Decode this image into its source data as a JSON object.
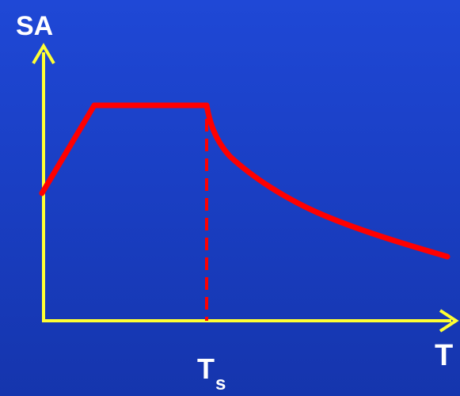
{
  "axes": {
    "y_label": "SA",
    "x_label": "T",
    "axis_color": "#ffff33"
  },
  "spectrum": {
    "curve_color": "#ff0000",
    "marker_label_main": "T",
    "marker_label_sub": "s",
    "marker_line_style": "dashed"
  },
  "background_color": "#1a3fc4"
}
